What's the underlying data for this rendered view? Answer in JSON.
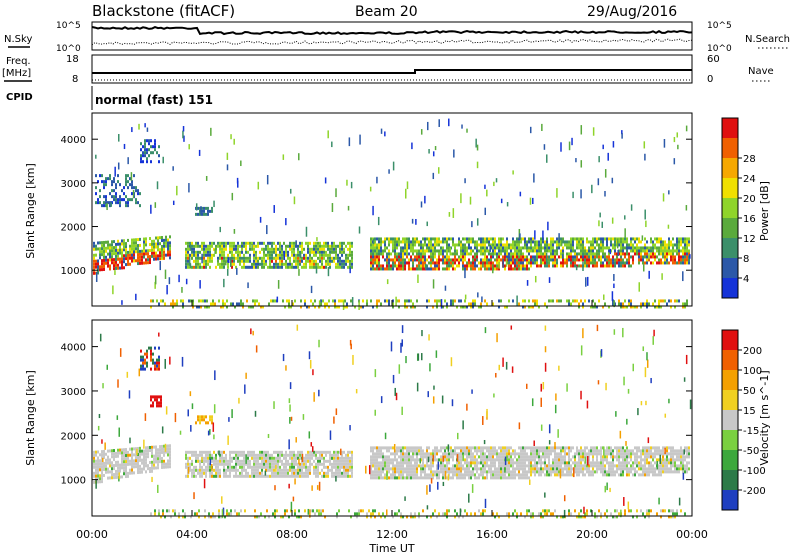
{
  "header": {
    "title": "Blackstone (fitACF)",
    "beam": "Beam 20",
    "date": "29/Aug/2016"
  },
  "top_panels": {
    "nsky_label": "N.Sky",
    "nsearch_label": "N.Search",
    "noise_ticks": [
      "10^5",
      "10^0"
    ],
    "freq_label": "Freq.",
    "freq_unit": "[MHz]",
    "freq_ticks": [
      "18",
      "8"
    ],
    "nave_label": "Nave",
    "nave_ticks": [
      "60",
      "0"
    ],
    "cpid_label": "CPID",
    "cpid_value": "normal (fast) 151"
  },
  "chart_data": [
    {
      "type": "heatmap",
      "name": "power",
      "ylabel": "Slant Range [km]",
      "yticks": [
        "1000",
        "2000",
        "3000",
        "4000"
      ],
      "ylim": [
        180,
        4600
      ],
      "colorbar_label": "Power [dB]",
      "colorbar_ticks": [
        "4",
        "8",
        "12",
        "16",
        "20",
        "24",
        "28"
      ],
      "colors": [
        "#1533d8",
        "#2b58a8",
        "#3b8f6a",
        "#5aaa3c",
        "#8fd42a",
        "#f0e000",
        "#f6a800",
        "#f06000",
        "#e01010"
      ]
    },
    {
      "type": "heatmap",
      "name": "velocity",
      "ylabel": "Slant Range [km]",
      "yticks": [
        "1000",
        "2000",
        "3000",
        "4000"
      ],
      "ylim": [
        180,
        4600
      ],
      "colorbar_label": "Velocity [m s^-1]",
      "colorbar_ticks": [
        "200",
        "100",
        "50",
        "15",
        "-15",
        "-50",
        "-100",
        "-200"
      ],
      "colors": [
        "#1f3fc0",
        "#2c7a48",
        "#3ca83c",
        "#7ad040",
        "#c8c8c8",
        "#f0d020",
        "#f4a000",
        "#f06000",
        "#e01010"
      ]
    }
  ],
  "x_axis": {
    "ticks": [
      "00:00",
      "04:00",
      "08:00",
      "12:00",
      "16:00",
      "20:00",
      "00:00"
    ],
    "label": "Time UT"
  }
}
